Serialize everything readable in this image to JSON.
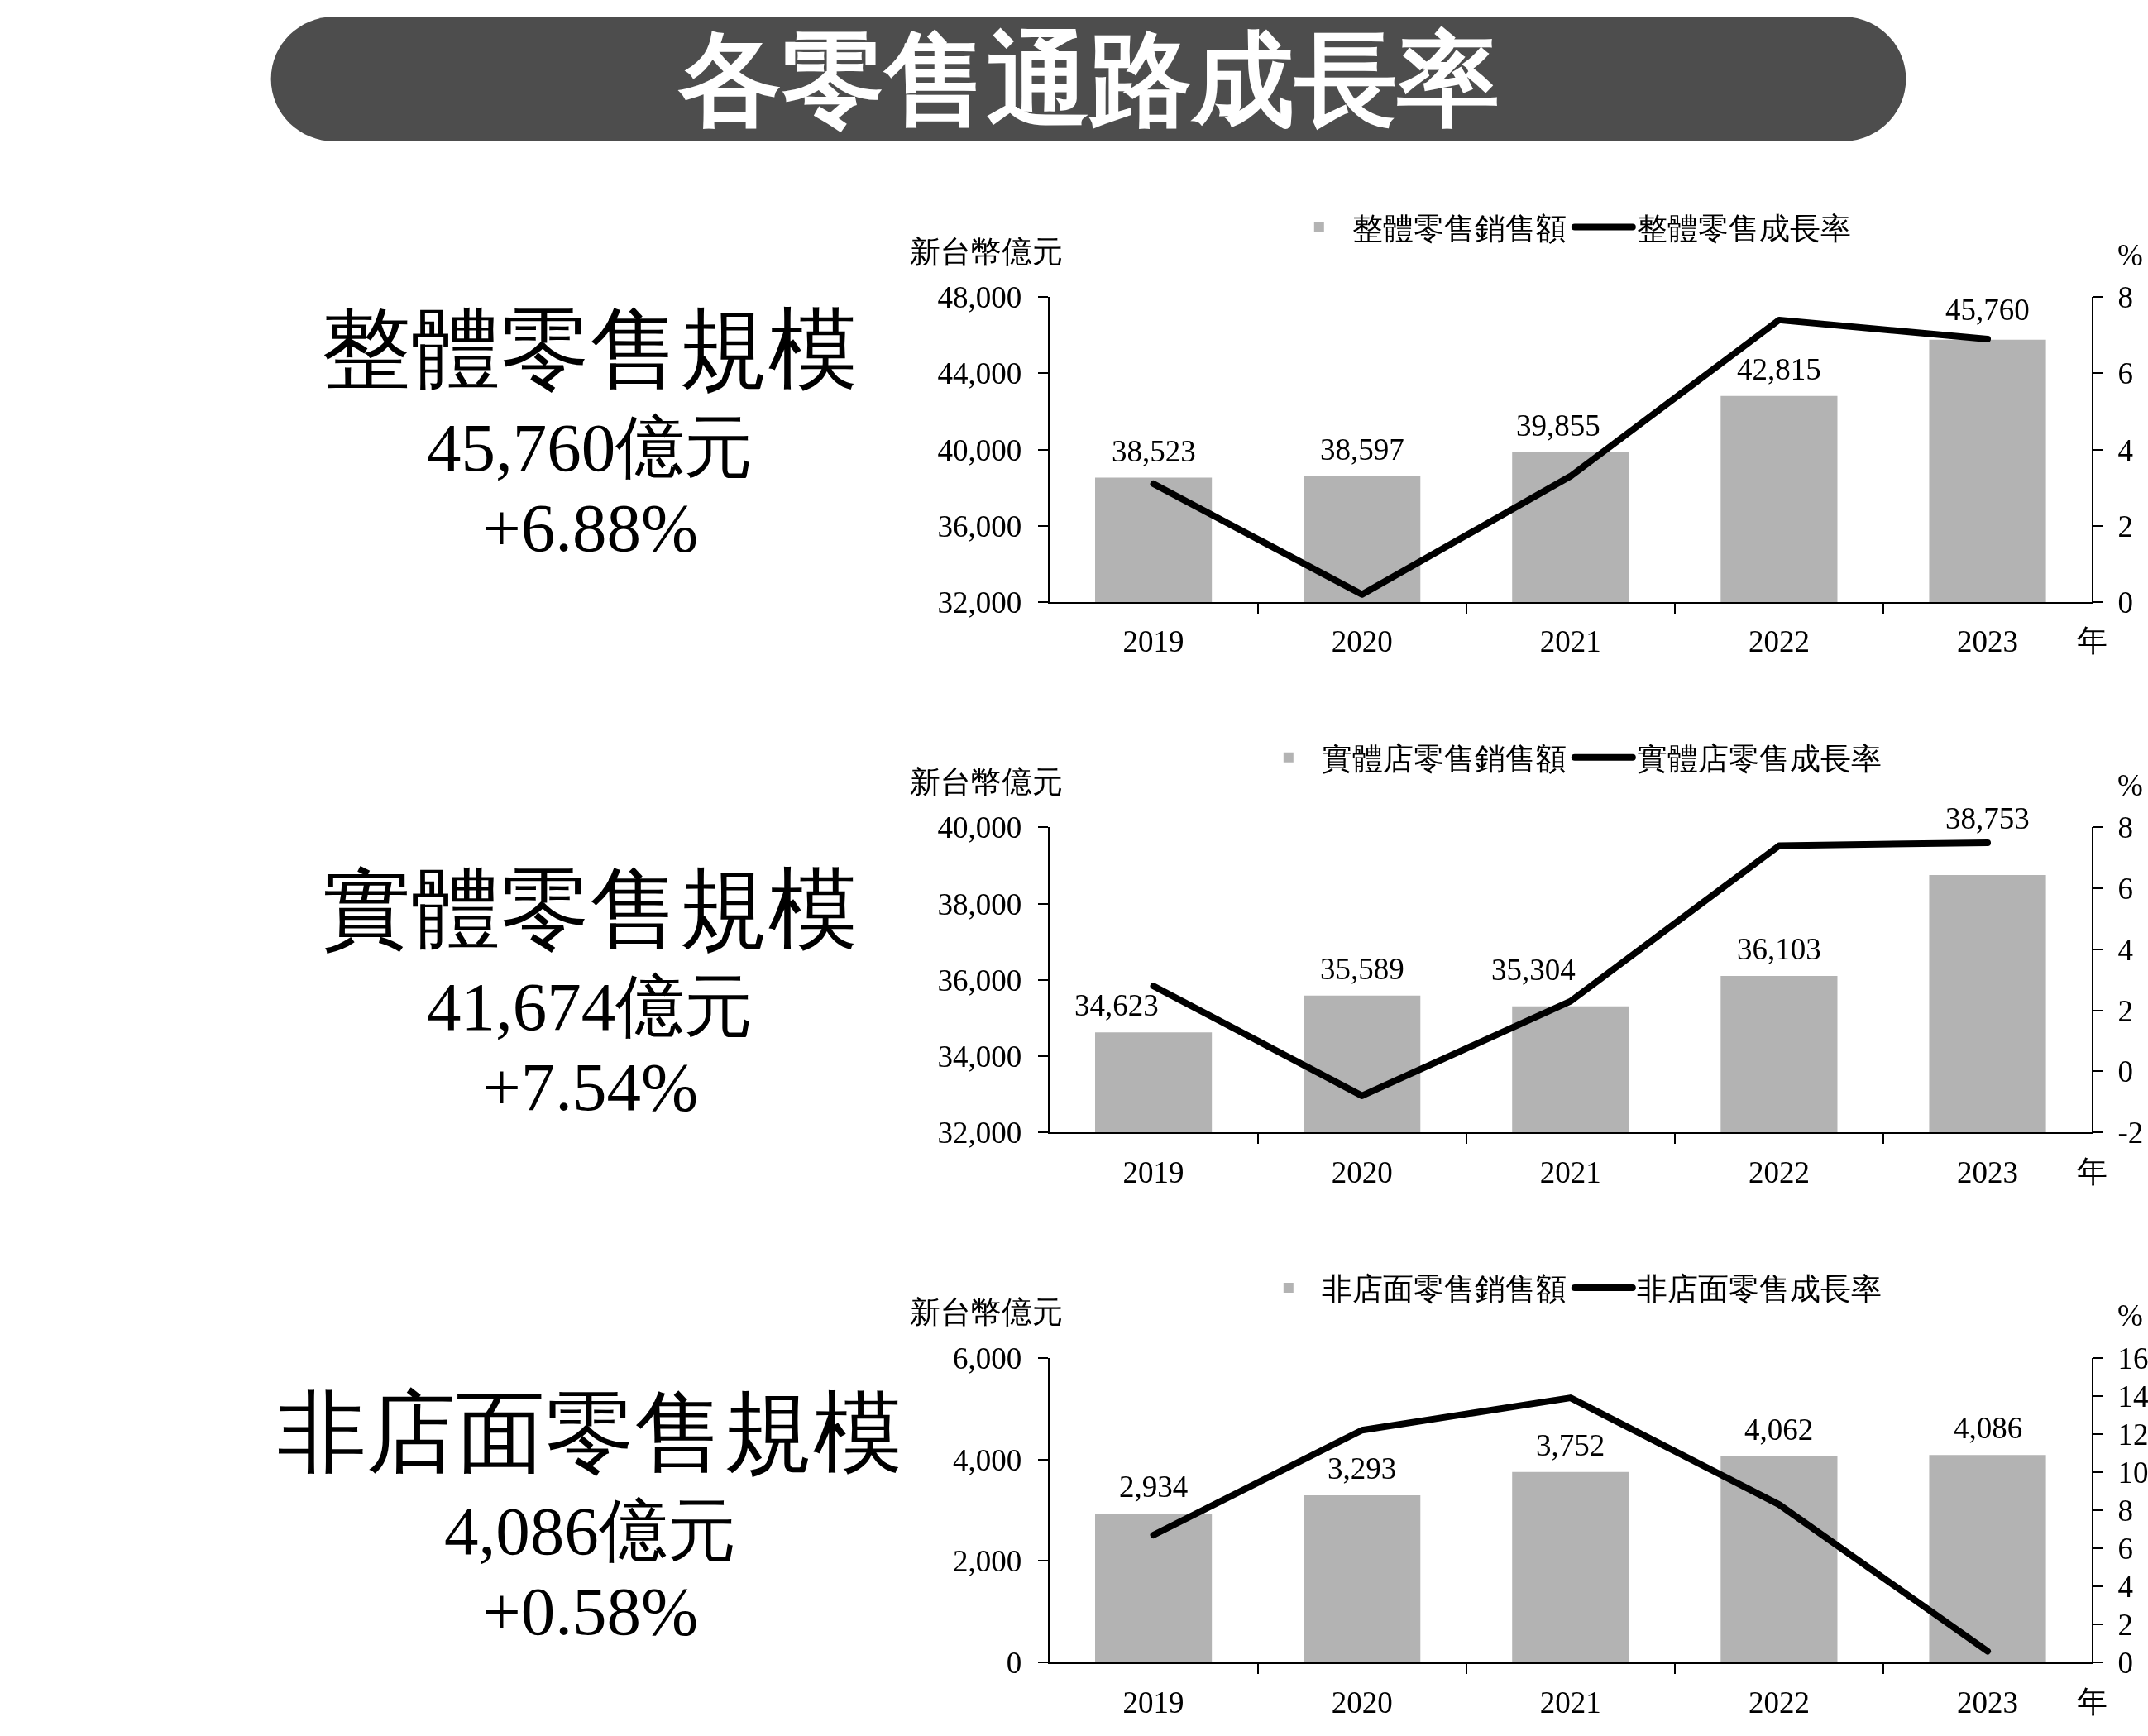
{
  "chart_data": [
    {
      "type": "other",
      "title": "各零售通路成長率"
    },
    {
      "type": "other",
      "title": "整體零售規模",
      "annotations": [
        "45,760億元",
        "+6.88%"
      ]
    },
    {
      "type": "bar",
      "categories": [
        "2019",
        "2020",
        "2021",
        "2022",
        "2023"
      ],
      "xlabel": "年",
      "ylabel": "新台幣億元",
      "y2label": "%",
      "legend": "top",
      "series": [
        {
          "name": "整體零售銷售額",
          "type": "bar",
          "color": "#b3b3b3",
          "values": [
            38523,
            38597,
            39855,
            42815,
            45760
          ],
          "value_labels": [
            "38,523",
            "38,597",
            "39,855",
            "42,815",
            "45,760"
          ]
        },
        {
          "name": "整體零售成長率",
          "type": "line",
          "axis": "y2",
          "color": "#000000",
          "values": [
            3.1,
            0.2,
            3.3,
            7.4,
            6.9
          ]
        }
      ],
      "ylim": [
        32000,
        48000
      ],
      "yticks": [
        {
          "value": 32000,
          "label": "32,000"
        },
        {
          "value": 36000,
          "label": "36,000"
        },
        {
          "value": 40000,
          "label": "40,000"
        },
        {
          "value": 44000,
          "label": "44,000"
        },
        {
          "value": 48000,
          "label": "48,000"
        }
      ],
      "y2lim": [
        0,
        8
      ],
      "y2ticks": [
        0,
        2,
        4,
        6,
        8
      ]
    },
    {
      "type": "other",
      "title": "實體零售規模",
      "annotations": [
        "41,674億元",
        "+7.54%"
      ]
    },
    {
      "type": "bar",
      "categories": [
        "2019",
        "2020",
        "2021",
        "2022",
        "2023"
      ],
      "xlabel": "年",
      "ylabel": "新台幣億元",
      "y2label": "%",
      "legend": "top",
      "series": [
        {
          "name": "實體店零售銷售額",
          "type": "bar",
          "color": "#b3b3b3",
          "values": [
            34623,
            35589,
            35304,
            36103,
            38753
          ],
          "value_labels": [
            "34,623",
            "35,589",
            "35,304",
            "36,103",
            "38,753"
          ]
        },
        {
          "name": "實體店零售成長率",
          "type": "line",
          "axis": "y2",
          "color": "#000000",
          "values": [
            2.8,
            -0.8,
            2.3,
            7.4,
            7.5
          ]
        }
      ],
      "ylim": [
        32000,
        40000
      ],
      "yticks": [
        {
          "value": 32000,
          "label": "32,000"
        },
        {
          "value": 34000,
          "label": "34,000"
        },
        {
          "value": 36000,
          "label": "36,000"
        },
        {
          "value": 38000,
          "label": "38,000"
        },
        {
          "value": 40000,
          "label": "40,000"
        }
      ],
      "y2lim": [
        -2,
        8
      ],
      "y2ticks": [
        -2,
        0,
        2,
        4,
        6,
        8
      ]
    },
    {
      "type": "other",
      "title": "非店面零售規模",
      "annotations": [
        "4,086億元",
        "+0.58%"
      ]
    },
    {
      "type": "bar",
      "categories": [
        "2019",
        "2020",
        "2021",
        "2022",
        "2023"
      ],
      "xlabel": "年",
      "ylabel": "新台幣億元",
      "y2label": "%",
      "legend": "top",
      "series": [
        {
          "name": "非店面零售銷售額",
          "type": "bar",
          "color": "#b3b3b3",
          "values": [
            2934,
            3293,
            3752,
            4062,
            4086
          ],
          "value_labels": [
            "2,934",
            "3,293",
            "3,752",
            "4,062",
            "4,086"
          ]
        },
        {
          "name": "非店面零售成長率",
          "type": "line",
          "axis": "y2",
          "color": "#000000",
          "values": [
            6.7,
            12.2,
            13.9,
            8.3,
            0.6
          ]
        }
      ],
      "ylim": [
        0,
        6000
      ],
      "yticks": [
        0,
        {
          "value": 2000,
          "label": "2,000"
        },
        {
          "value": 4000,
          "label": "4,000"
        },
        {
          "value": 6000,
          "label": "6,000"
        }
      ],
      "y2lim": [
        0,
        16
      ],
      "y2ticks": [
        0,
        2,
        4,
        6,
        8,
        10,
        12,
        14,
        16
      ]
    }
  ]
}
